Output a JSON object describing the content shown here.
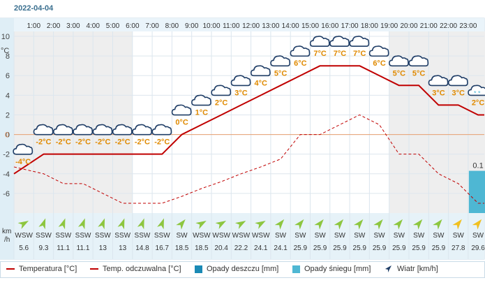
{
  "date": "2022-04-04",
  "hours": [
    "1:00",
    "2:00",
    "3:00",
    "4:00",
    "5:00",
    "6:00",
    "7:00",
    "8:00",
    "9:00",
    "10:00",
    "11:00",
    "12:00",
    "13:00",
    "14:00",
    "15:00",
    "16:00",
    "17:00",
    "18:00",
    "19:00",
    "20:00",
    "21:00",
    "22:00",
    "23:00"
  ],
  "temp_axis_unit": "°C",
  "wind_axis_unit": [
    "km",
    "/h"
  ],
  "chart_data": {
    "type": "line",
    "title": "",
    "xlabel": "",
    "ylabel": "°C",
    "ylim": [
      -8,
      10.5
    ],
    "yticks": [
      -6,
      -4,
      -2,
      0,
      2,
      4,
      6,
      8,
      10
    ],
    "temperature": [
      -4,
      -2,
      -2,
      -2,
      -2,
      -2,
      -2,
      -2,
      0,
      1,
      2,
      3,
      4,
      5,
      6,
      7,
      7,
      7,
      6,
      5,
      5,
      3,
      3,
      2
    ],
    "temperature_labels": [
      "-4°C",
      "-2°C",
      "-2°C",
      "-2°C",
      "-2°C",
      "-2°C",
      "-2°C",
      "-2°C",
      "0°C",
      "1°C",
      "2°C",
      "3°C",
      "4°C",
      "5°C",
      "6°C",
      "7°C",
      "7°C",
      "7°C",
      "6°C",
      "5°C",
      "5°C",
      "3°C",
      "3°C",
      "2°C"
    ],
    "feels_like": [
      -3.3,
      -4,
      -5,
      -5,
      -6,
      -7,
      -7,
      -7,
      -6.3,
      -5.5,
      -4.8,
      -4,
      -3.3,
      -2.5,
      0,
      0,
      1,
      2,
      1,
      -2,
      -2,
      -4,
      -5,
      -7
    ],
    "snowfall": [
      0,
      0,
      0,
      0,
      0,
      0,
      0,
      0,
      0,
      0,
      0,
      0,
      0,
      0,
      0,
      0,
      0,
      0,
      0,
      0,
      0,
      0,
      0,
      0.1
    ],
    "snowfall_label": "0.1",
    "wind_dir": [
      "WSW",
      "SSW",
      "SSW",
      "SSW",
      "SSW",
      "SSW",
      "SSW",
      "SSW",
      "SW",
      "WSW",
      "WSW",
      "WSW",
      "WSW",
      "SW",
      "SW",
      "SW",
      "SW",
      "SW",
      "SW",
      "SW",
      "SW",
      "SW",
      "SW",
      "SW"
    ],
    "wind_speed": [
      "5.6",
      "9.3",
      "11.1",
      "11.1",
      "13",
      "13",
      "14.8",
      "16.7",
      "18.5",
      "18.5",
      "20.4",
      "22.2",
      "24.1",
      "24.1",
      "25.9",
      "25.9",
      "25.9",
      "25.9",
      "25.9",
      "25.9",
      "25.9",
      "25.9",
      "27.8",
      "29.6"
    ],
    "wind_rotation": [
      60,
      20,
      20,
      20,
      20,
      20,
      20,
      20,
      40,
      60,
      60,
      60,
      60,
      40,
      40,
      40,
      40,
      40,
      40,
      40,
      40,
      40,
      40,
      40
    ],
    "wind_colors": [
      "#8dc63f",
      "#8dc63f",
      "#8dc63f",
      "#8dc63f",
      "#8dc63f",
      "#8dc63f",
      "#8dc63f",
      "#8dc63f",
      "#8dc63f",
      "#8dc63f",
      "#8dc63f",
      "#8dc63f",
      "#8dc63f",
      "#8dc63f",
      "#8dc63f",
      "#8dc63f",
      "#8dc63f",
      "#8dc63f",
      "#8dc63f",
      "#8dc63f",
      "#8dc63f",
      "#8dc63f",
      "#f0c020",
      "#f0c020"
    ]
  },
  "legend": {
    "temp": "Temperatura [°C]",
    "feels": "Temp. odczuwalna [°C]",
    "rain": "Opady deszczu [mm]",
    "snow": "Opady śniegu [mm]",
    "wind": "Wiatr [km/h]"
  },
  "colors": {
    "temp_line": "#c00000",
    "temp_label": "#e08a00",
    "snow": "#4eb7d3",
    "rain": "#1a8ab5",
    "zero_line": "#e8a070",
    "grid": "#dde6ee"
  }
}
